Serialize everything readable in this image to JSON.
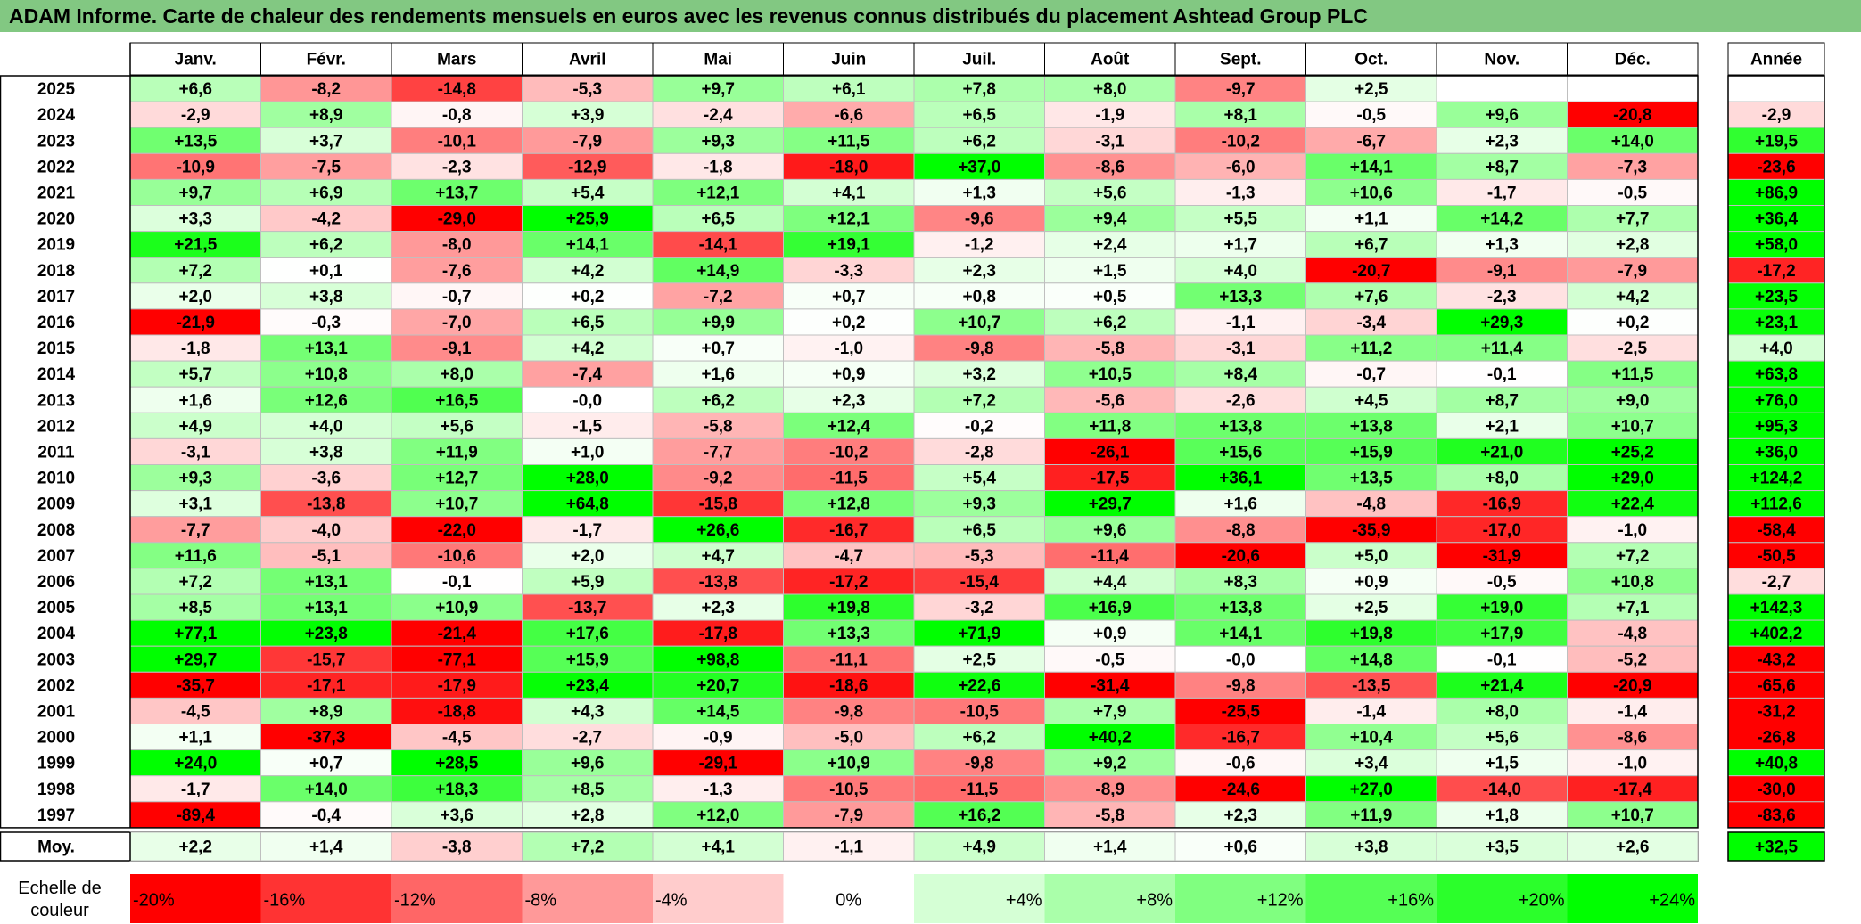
{
  "title": "ADAM Informe. Carte de chaleur des rendements mensuels en euros avec les revenus connus distribués du placement Ashtead Group PLC",
  "chart_data": {
    "type": "heatmap",
    "title": "ADAM Informe. Carte de chaleur des rendements mensuels en euros avec les revenus connus distribués du placement Ashtead Group PLC",
    "months": [
      "Janv.",
      "Févr.",
      "Mars",
      "Avril",
      "Mai",
      "Juin",
      "Juil.",
      "Août",
      "Sept.",
      "Oct.",
      "Nov.",
      "Déc."
    ],
    "annual_label": "Année",
    "average_label": "Moy.",
    "rows": [
      {
        "year": "2025",
        "values": [
          "+6,6",
          "-8,2",
          "-14,8",
          "-5,3",
          "+9,7",
          "+6,1",
          "+7,8",
          "+8,0",
          "-9,7",
          "+2,5",
          "",
          ""
        ],
        "annual": ""
      },
      {
        "year": "2024",
        "values": [
          "-2,9",
          "+8,9",
          "-0,8",
          "+3,9",
          "-2,4",
          "-6,6",
          "+6,5",
          "-1,9",
          "+8,1",
          "-0,5",
          "+9,6",
          "-20,8"
        ],
        "annual": "-2,9"
      },
      {
        "year": "2023",
        "values": [
          "+13,5",
          "+3,7",
          "-10,1",
          "-7,9",
          "+9,3",
          "+11,5",
          "+6,2",
          "-3,1",
          "-10,2",
          "-6,7",
          "+2,3",
          "+14,0"
        ],
        "annual": "+19,5"
      },
      {
        "year": "2022",
        "values": [
          "-10,9",
          "-7,5",
          "-2,3",
          "-12,9",
          "-1,8",
          "-18,0",
          "+37,0",
          "-8,6",
          "-6,0",
          "+14,1",
          "+8,7",
          "-7,3"
        ],
        "annual": "-23,6"
      },
      {
        "year": "2021",
        "values": [
          "+9,7",
          "+6,9",
          "+13,7",
          "+5,4",
          "+12,1",
          "+4,1",
          "+1,3",
          "+5,6",
          "-1,3",
          "+10,6",
          "-1,7",
          "-0,5"
        ],
        "annual": "+86,9"
      },
      {
        "year": "2020",
        "values": [
          "+3,3",
          "-4,2",
          "-29,0",
          "+25,9",
          "+6,5",
          "+12,1",
          "-9,6",
          "+9,4",
          "+5,5",
          "+1,1",
          "+14,2",
          "+7,7"
        ],
        "annual": "+36,4"
      },
      {
        "year": "2019",
        "values": [
          "+21,5",
          "+6,2",
          "-8,0",
          "+14,1",
          "-14,1",
          "+19,1",
          "-1,2",
          "+2,4",
          "+1,7",
          "+6,7",
          "+1,3",
          "+2,8"
        ],
        "annual": "+58,0"
      },
      {
        "year": "2018",
        "values": [
          "+7,2",
          "+0,1",
          "-7,6",
          "+4,2",
          "+14,9",
          "-3,3",
          "+2,3",
          "+1,5",
          "+4,0",
          "-20,7",
          "-9,1",
          "-7,9"
        ],
        "annual": "-17,2"
      },
      {
        "year": "2017",
        "values": [
          "+2,0",
          "+3,8",
          "-0,7",
          "+0,2",
          "-7,2",
          "+0,7",
          "+0,8",
          "+0,5",
          "+13,3",
          "+7,6",
          "-2,3",
          "+4,2"
        ],
        "annual": "+23,5"
      },
      {
        "year": "2016",
        "values": [
          "-21,9",
          "-0,3",
          "-7,0",
          "+6,5",
          "+9,9",
          "+0,2",
          "+10,7",
          "+6,2",
          "-1,1",
          "-3,4",
          "+29,3",
          "+0,2"
        ],
        "annual": "+23,1"
      },
      {
        "year": "2015",
        "values": [
          "-1,8",
          "+13,1",
          "-9,1",
          "+4,2",
          "+0,7",
          "-1,0",
          "-9,8",
          "-5,8",
          "-3,1",
          "+11,2",
          "+11,4",
          "-2,5"
        ],
        "annual": "+4,0"
      },
      {
        "year": "2014",
        "values": [
          "+5,7",
          "+10,8",
          "+8,0",
          "-7,4",
          "+1,6",
          "+0,9",
          "+3,2",
          "+10,5",
          "+8,4",
          "-0,7",
          "-0,1",
          "+11,5"
        ],
        "annual": "+63,8"
      },
      {
        "year": "2013",
        "values": [
          "+1,6",
          "+12,6",
          "+16,5",
          "-0,0",
          "+6,2",
          "+2,3",
          "+7,2",
          "-5,6",
          "-2,6",
          "+4,5",
          "+8,7",
          "+9,0"
        ],
        "annual": "+76,0"
      },
      {
        "year": "2012",
        "values": [
          "+4,9",
          "+4,0",
          "+5,6",
          "-1,5",
          "-5,8",
          "+12,4",
          "-0,2",
          "+11,8",
          "+13,8",
          "+13,8",
          "+2,1",
          "+10,7"
        ],
        "annual": "+95,3"
      },
      {
        "year": "2011",
        "values": [
          "-3,1",
          "+3,8",
          "+11,9",
          "+1,0",
          "-7,7",
          "-10,2",
          "-2,8",
          "-26,1",
          "+15,6",
          "+15,9",
          "+21,0",
          "+25,2"
        ],
        "annual": "+36,0"
      },
      {
        "year": "2010",
        "values": [
          "+9,3",
          "-3,6",
          "+12,7",
          "+28,0",
          "-9,2",
          "-11,5",
          "+5,4",
          "-17,5",
          "+36,1",
          "+13,5",
          "+8,0",
          "+29,0"
        ],
        "annual": "+124,2"
      },
      {
        "year": "2009",
        "values": [
          "+3,1",
          "-13,8",
          "+10,7",
          "+64,8",
          "-15,8",
          "+12,8",
          "+9,3",
          "+29,7",
          "+1,6",
          "-4,8",
          "-16,9",
          "+22,4"
        ],
        "annual": "+112,6"
      },
      {
        "year": "2008",
        "values": [
          "-7,7",
          "-4,0",
          "-22,0",
          "-1,7",
          "+26,6",
          "-16,7",
          "+6,5",
          "+9,6",
          "-8,8",
          "-35,9",
          "-17,0",
          "-1,0"
        ],
        "annual": "-58,4"
      },
      {
        "year": "2007",
        "values": [
          "+11,6",
          "-5,1",
          "-10,6",
          "+2,0",
          "+4,7",
          "-4,7",
          "-5,3",
          "-11,4",
          "-20,6",
          "+5,0",
          "-31,9",
          "+7,2"
        ],
        "annual": "-50,5"
      },
      {
        "year": "2006",
        "values": [
          "+7,2",
          "+13,1",
          "-0,1",
          "+5,9",
          "-13,8",
          "-17,2",
          "-15,4",
          "+4,4",
          "+8,3",
          "+0,9",
          "-0,5",
          "+10,8"
        ],
        "annual": "-2,7"
      },
      {
        "year": "2005",
        "values": [
          "+8,5",
          "+13,1",
          "+10,9",
          "-13,7",
          "+2,3",
          "+19,8",
          "-3,2",
          "+16,9",
          "+13,8",
          "+2,5",
          "+19,0",
          "+7,1"
        ],
        "annual": "+142,3"
      },
      {
        "year": "2004",
        "values": [
          "+77,1",
          "+23,8",
          "-21,4",
          "+17,6",
          "-17,8",
          "+13,3",
          "+71,9",
          "+0,9",
          "+14,1",
          "+19,8",
          "+17,9",
          "-4,8"
        ],
        "annual": "+402,2"
      },
      {
        "year": "2003",
        "values": [
          "+29,7",
          "-15,7",
          "-77,1",
          "+15,9",
          "+98,8",
          "-11,1",
          "+2,5",
          "-0,5",
          "-0,0",
          "+14,8",
          "-0,1",
          "-5,2"
        ],
        "annual": "-43,2"
      },
      {
        "year": "2002",
        "values": [
          "-35,7",
          "-17,1",
          "-17,9",
          "+23,4",
          "+20,7",
          "-18,6",
          "+22,6",
          "-31,4",
          "-9,8",
          "-13,5",
          "+21,4",
          "-20,9"
        ],
        "annual": "-65,6"
      },
      {
        "year": "2001",
        "values": [
          "-4,5",
          "+8,9",
          "-18,8",
          "+4,3",
          "+14,5",
          "-9,8",
          "-10,5",
          "+7,9",
          "-25,5",
          "-1,4",
          "+8,0",
          "-1,4"
        ],
        "annual": "-31,2"
      },
      {
        "year": "2000",
        "values": [
          "+1,1",
          "-37,3",
          "-4,5",
          "-2,7",
          "-0,9",
          "-5,0",
          "+6,2",
          "+40,2",
          "-16,7",
          "+10,4",
          "+5,6",
          "-8,6"
        ],
        "annual": "-26,8"
      },
      {
        "year": "1999",
        "values": [
          "+24,0",
          "+0,7",
          "+28,5",
          "+9,6",
          "-29,1",
          "+10,9",
          "-9,8",
          "+9,2",
          "-0,6",
          "+3,4",
          "+1,5",
          "-1,0"
        ],
        "annual": "+40,8"
      },
      {
        "year": "1998",
        "values": [
          "-1,7",
          "+14,0",
          "+18,3",
          "+8,5",
          "-1,3",
          "-10,5",
          "-11,5",
          "-8,9",
          "-24,6",
          "+27,0",
          "-14,0",
          "-17,4"
        ],
        "annual": "-30,0"
      },
      {
        "year": "1997",
        "values": [
          "-89,4",
          "-0,4",
          "+3,6",
          "+2,8",
          "+12,0",
          "-7,9",
          "+16,2",
          "-5,8",
          "+2,3",
          "+11,9",
          "+1,8",
          "+10,7"
        ],
        "annual": "-83,6"
      }
    ],
    "averages": [
      "+2,2",
      "+1,4",
      "-3,8",
      "+7,2",
      "+4,1",
      "-1,1",
      "+4,9",
      "+1,4",
      "+0,6",
      "+3,8",
      "+3,5",
      "+2,6"
    ],
    "average_annual": "+32,5",
    "scale_label_line1": "Echelle de",
    "scale_label_line2": "couleur",
    "scale": [
      {
        "label": "-20%",
        "value": -20
      },
      {
        "label": "-16%",
        "value": -16
      },
      {
        "label": "-12%",
        "value": -12
      },
      {
        "label": "-8%",
        "value": -8
      },
      {
        "label": "-4%",
        "value": -4
      },
      {
        "label": "0%",
        "value": 0
      },
      {
        "label": "+4%",
        "value": 4
      },
      {
        "label": "+8%",
        "value": 8
      },
      {
        "label": "+12%",
        "value": 12
      },
      {
        "label": "+16%",
        "value": 16
      },
      {
        "label": "+20%",
        "value": 20
      },
      {
        "label": "+24%",
        "value": 24
      }
    ],
    "colors": {
      "negative_max": "#ff0000",
      "neutral": "#ffffff",
      "positive_max": "#00ff00",
      "title_background": "#82c882",
      "grid": "#bfbfbf",
      "border": "#000000"
    },
    "color_range": {
      "min": -20,
      "max": 24
    }
  }
}
